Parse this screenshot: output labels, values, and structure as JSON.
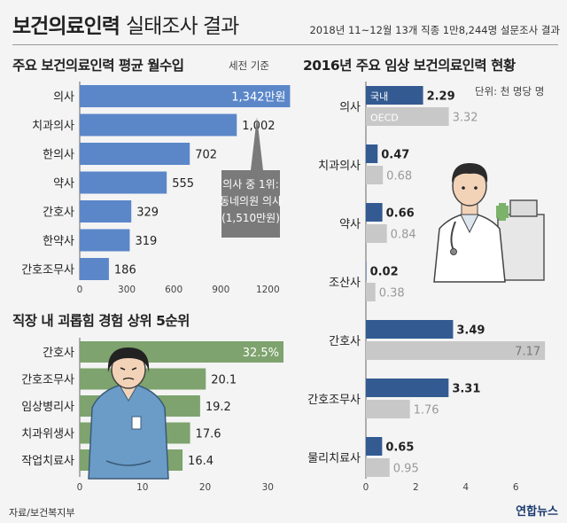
{
  "header": {
    "title_bold": "보건의료인력",
    "title_rest": "실태조사 결과",
    "survey_note": "2018년 11~12월 13개 직종 1만8,244명 설문조사 결과"
  },
  "source": "자료/보건복지부",
  "logo_text": "연합뉴스",
  "colors": {
    "blue": "#5b87c9",
    "navy": "#335b92",
    "gray": "#c8c8c8",
    "green": "#7ea36e",
    "background": "#f4f4f4"
  },
  "chart_data": [
    {
      "type": "bar",
      "orientation": "horizontal",
      "title": "주요 보건의료인력 평균 월수입",
      "note": "세전 기준",
      "categories": [
        "의사",
        "치과의사",
        "한의사",
        "약사",
        "간호사",
        "한약사",
        "간호조무사"
      ],
      "values": [
        1342,
        1002,
        702,
        555,
        329,
        319,
        186
      ],
      "value_labels": [
        "1,342만원",
        "1,002",
        "702",
        "555",
        "329",
        "319",
        "186"
      ],
      "xlim": [
        0,
        1300
      ],
      "xticks": [
        "0",
        "300",
        "600",
        "900",
        "1200"
      ],
      "callout": [
        "의사 중 1위:",
        "동네의원 의사",
        "(1,510만원)"
      ]
    },
    {
      "type": "bar",
      "orientation": "horizontal",
      "title": "직장 내 괴롭힘 경험 상위 5순위",
      "categories": [
        "간호사",
        "간호조무사",
        "임상병리사",
        "치과위생사",
        "작업치료사"
      ],
      "values": [
        32.5,
        20.1,
        19.2,
        17.6,
        16.4
      ],
      "value_labels": [
        "32.5%",
        "20.1",
        "19.2",
        "17.6",
        "16.4"
      ],
      "xlim": [
        0,
        32.5
      ],
      "xticks": [
        "0",
        "10",
        "20",
        "30"
      ]
    },
    {
      "type": "bar",
      "orientation": "horizontal",
      "title": "2016년 주요 임상 보건의료인력 현황",
      "unit_note": "단위: 천 명당 명",
      "categories": [
        "의사",
        "치과의사",
        "약사",
        "조산사",
        "간호사",
        "간호조무사",
        "물리치료사"
      ],
      "series": [
        {
          "name": "국내",
          "values": [
            2.29,
            0.47,
            0.66,
            0.02,
            3.49,
            3.31,
            0.65
          ],
          "labels": [
            "2.29",
            "0.47",
            "0.66",
            "0.02",
            "3.49",
            "3.31",
            "0.65"
          ]
        },
        {
          "name": "OECD",
          "values": [
            3.32,
            0.68,
            0.84,
            0.38,
            7.17,
            1.76,
            0.95
          ],
          "labels": [
            "3.32",
            "0.68",
            "0.84",
            "0.38",
            "7.17",
            "1.76",
            "0.95"
          ]
        }
      ],
      "xlim": [
        0,
        7.2
      ],
      "xticks": [
        "0",
        "2",
        "4",
        "6"
      ]
    }
  ]
}
